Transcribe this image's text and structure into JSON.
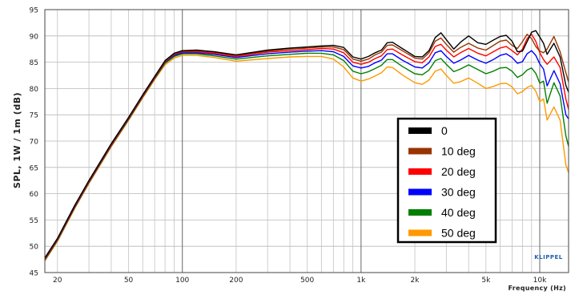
{
  "chart_data": {
    "type": "line",
    "title": "",
    "xlabel": "Frequency (Hz)",
    "ylabel": "SPL, 1W / 1m (dB)",
    "x_scale": "log",
    "xlim": [
      17,
      14500
    ],
    "ylim": [
      45,
      95
    ],
    "grid": true,
    "legend_position": "right-center",
    "x_tick_values": [
      20,
      50,
      100,
      200,
      500,
      1000,
      2000,
      5000,
      10000
    ],
    "x_tick_labels": [
      "20",
      "50",
      "100",
      "200",
      "500",
      "1k",
      "2k",
      "5k",
      "10k"
    ],
    "y_ticks": [
      45,
      50,
      55,
      60,
      65,
      70,
      75,
      80,
      85,
      90,
      95
    ],
    "logo_text": "KLIPPEL",
    "series": [
      {
        "name": "0",
        "color": "#000000",
        "x": [
          17,
          20,
          25,
          30,
          40,
          50,
          60,
          70,
          80,
          90,
          100,
          120,
          150,
          200,
          300,
          400,
          500,
          600,
          700,
          800,
          900,
          1000,
          1100,
          1200,
          1300,
          1400,
          1500,
          1700,
          2000,
          2200,
          2400,
          2600,
          2800,
          3000,
          3300,
          3600,
          4000,
          4500,
          5000,
          5500,
          6000,
          6500,
          7000,
          7500,
          8000,
          8500,
          9000,
          9500,
          10000,
          10500,
          11000,
          12000,
          13000,
          14000,
          14500
        ],
        "y": [
          47.8,
          51.5,
          57.8,
          62.5,
          69.5,
          74.5,
          78.8,
          82.3,
          85.3,
          86.7,
          87.2,
          87.3,
          87.0,
          86.4,
          87.3,
          87.7,
          87.9,
          88.1,
          88.2,
          87.8,
          86.0,
          85.6,
          86.1,
          86.8,
          87.3,
          88.7,
          88.8,
          87.6,
          86.1,
          86.0,
          87.2,
          89.7,
          90.6,
          89.3,
          87.5,
          88.8,
          90.0,
          88.7,
          88.4,
          89.2,
          89.9,
          90.1,
          89.0,
          87.0,
          87.1,
          88.9,
          90.7,
          91.0,
          89.8,
          88.6,
          86.5,
          88.6,
          86.0,
          80.6,
          79.3
        ]
      },
      {
        "name": "10 deg",
        "color": "#993300",
        "x": [
          17,
          20,
          25,
          30,
          40,
          50,
          60,
          70,
          80,
          90,
          100,
          120,
          150,
          200,
          300,
          400,
          500,
          600,
          700,
          800,
          900,
          1000,
          1100,
          1200,
          1300,
          1400,
          1500,
          1700,
          2000,
          2200,
          2400,
          2600,
          2800,
          3000,
          3300,
          3600,
          4000,
          4500,
          5000,
          5500,
          6000,
          6500,
          7000,
          7500,
          8000,
          8500,
          9000,
          9500,
          10000,
          10500,
          11000,
          12000,
          13000,
          14000,
          14500
        ],
        "y": [
          47.7,
          51.4,
          57.7,
          62.4,
          69.4,
          74.4,
          78.7,
          82.2,
          85.2,
          86.6,
          87.1,
          87.2,
          86.9,
          86.3,
          87.1,
          87.5,
          87.7,
          87.9,
          87.9,
          87.4,
          85.6,
          85.2,
          85.6,
          86.4,
          86.9,
          88.2,
          88.3,
          87.2,
          85.8,
          85.6,
          86.8,
          89.0,
          89.6,
          88.4,
          86.9,
          87.8,
          88.6,
          87.7,
          87.3,
          88.2,
          89.0,
          89.2,
          88.2,
          87.6,
          88.9,
          90.3,
          89.5,
          88.0,
          87.1,
          86.8,
          87.5,
          89.9,
          87.0,
          83.0,
          81.2
        ]
      },
      {
        "name": "20 deg",
        "color": "#ff0000",
        "x": [
          17,
          20,
          25,
          30,
          40,
          50,
          60,
          70,
          80,
          90,
          100,
          120,
          150,
          200,
          300,
          400,
          500,
          600,
          700,
          800,
          900,
          1000,
          1100,
          1200,
          1300,
          1400,
          1500,
          1700,
          2000,
          2200,
          2400,
          2600,
          2800,
          3000,
          3300,
          3600,
          4000,
          4500,
          5000,
          5500,
          6000,
          6500,
          7000,
          7500,
          8000,
          8500,
          9000,
          9500,
          10000,
          10500,
          11000,
          12000,
          13000,
          14000,
          14500
        ],
        "y": [
          47.6,
          51.3,
          57.6,
          62.3,
          69.3,
          74.3,
          78.6,
          82.1,
          85.1,
          86.5,
          87.0,
          87.0,
          86.7,
          86.1,
          86.9,
          87.2,
          87.4,
          87.6,
          87.5,
          86.8,
          85.0,
          84.6,
          85.0,
          85.7,
          86.2,
          87.4,
          87.5,
          86.4,
          85.1,
          84.9,
          86.0,
          88.0,
          88.4,
          87.3,
          86.0,
          86.8,
          87.6,
          86.7,
          86.2,
          87.0,
          87.7,
          88.0,
          87.2,
          86.4,
          87.5,
          89.5,
          90.3,
          89.0,
          86.8,
          85.5,
          84.6,
          86.0,
          84.0,
          78.0,
          76.0
        ]
      },
      {
        "name": "30 deg",
        "color": "#0000ff",
        "x": [
          17,
          20,
          25,
          30,
          40,
          50,
          60,
          70,
          80,
          90,
          100,
          120,
          150,
          200,
          300,
          400,
          500,
          600,
          700,
          800,
          900,
          1000,
          1100,
          1200,
          1300,
          1400,
          1500,
          1700,
          2000,
          2200,
          2400,
          2600,
          2800,
          3000,
          3300,
          3600,
          4000,
          4500,
          5000,
          5500,
          6000,
          6500,
          7000,
          7500,
          8000,
          8500,
          9000,
          9500,
          10000,
          10500,
          11000,
          12000,
          13000,
          14000,
          14500
        ],
        "y": [
          47.5,
          51.2,
          57.5,
          62.2,
          69.2,
          74.2,
          78.5,
          82.0,
          85.0,
          86.3,
          86.8,
          86.8,
          86.5,
          85.9,
          86.6,
          86.9,
          87.1,
          87.2,
          87.0,
          86.1,
          84.3,
          83.9,
          84.2,
          84.9,
          85.4,
          86.6,
          86.6,
          85.4,
          84.1,
          83.9,
          84.9,
          86.8,
          87.2,
          86.1,
          84.8,
          85.4,
          86.3,
          85.4,
          84.8,
          85.5,
          86.3,
          86.6,
          85.9,
          84.8,
          85.1,
          86.6,
          87.2,
          86.3,
          84.7,
          83.7,
          80.5,
          83.4,
          80.9,
          75.0,
          74.2
        ]
      },
      {
        "name": "40 deg",
        "color": "#008000",
        "x": [
          17,
          20,
          25,
          30,
          40,
          50,
          60,
          70,
          80,
          90,
          100,
          120,
          150,
          200,
          300,
          400,
          500,
          600,
          700,
          800,
          900,
          1000,
          1100,
          1200,
          1300,
          1400,
          1500,
          1700,
          2000,
          2200,
          2400,
          2600,
          2800,
          3000,
          3300,
          3600,
          4000,
          4500,
          5000,
          5500,
          6000,
          6500,
          7000,
          7500,
          8000,
          8500,
          9000,
          9500,
          10000,
          10500,
          11000,
          12000,
          13000,
          14000,
          14500
        ],
        "y": [
          47.4,
          51.1,
          57.4,
          62.1,
          69.1,
          74.1,
          78.4,
          81.9,
          84.8,
          86.1,
          86.6,
          86.6,
          86.2,
          85.6,
          86.2,
          86.5,
          86.7,
          86.7,
          86.4,
          85.3,
          83.3,
          82.8,
          83.2,
          83.8,
          84.4,
          85.5,
          85.5,
          84.2,
          82.8,
          82.6,
          83.5,
          85.3,
          85.7,
          84.6,
          83.2,
          83.7,
          84.5,
          83.6,
          82.8,
          83.3,
          83.9,
          84.0,
          83.3,
          82.1,
          82.6,
          83.5,
          83.9,
          82.9,
          81.0,
          81.4,
          77.2,
          81.1,
          78.6,
          71.0,
          69.0
        ]
      },
      {
        "name": "50 deg",
        "color": "#ff9900",
        "x": [
          17,
          20,
          25,
          30,
          40,
          50,
          60,
          70,
          80,
          90,
          100,
          120,
          150,
          200,
          300,
          400,
          500,
          600,
          700,
          800,
          900,
          1000,
          1100,
          1200,
          1300,
          1400,
          1500,
          1700,
          2000,
          2200,
          2400,
          2600,
          2800,
          3000,
          3300,
          3600,
          4000,
          4500,
          5000,
          5500,
          6000,
          6500,
          7000,
          7500,
          8000,
          8500,
          9000,
          9500,
          10000,
          10500,
          11000,
          12000,
          13000,
          14000,
          14500
        ],
        "y": [
          47.2,
          50.9,
          57.2,
          61.9,
          68.9,
          73.9,
          78.2,
          81.7,
          84.5,
          85.8,
          86.3,
          86.3,
          85.9,
          85.2,
          85.7,
          86.0,
          86.1,
          86.1,
          85.6,
          84.1,
          82.0,
          81.4,
          81.8,
          82.4,
          83.0,
          84.1,
          84.0,
          82.6,
          81.1,
          80.8,
          81.6,
          83.3,
          83.7,
          82.5,
          81.0,
          81.3,
          82.0,
          81.0,
          80.0,
          80.4,
          80.9,
          81.0,
          80.3,
          79.0,
          79.4,
          80.2,
          80.6,
          79.5,
          77.5,
          78.0,
          74.0,
          76.5,
          74.0,
          65.5,
          64.0
        ]
      }
    ]
  }
}
